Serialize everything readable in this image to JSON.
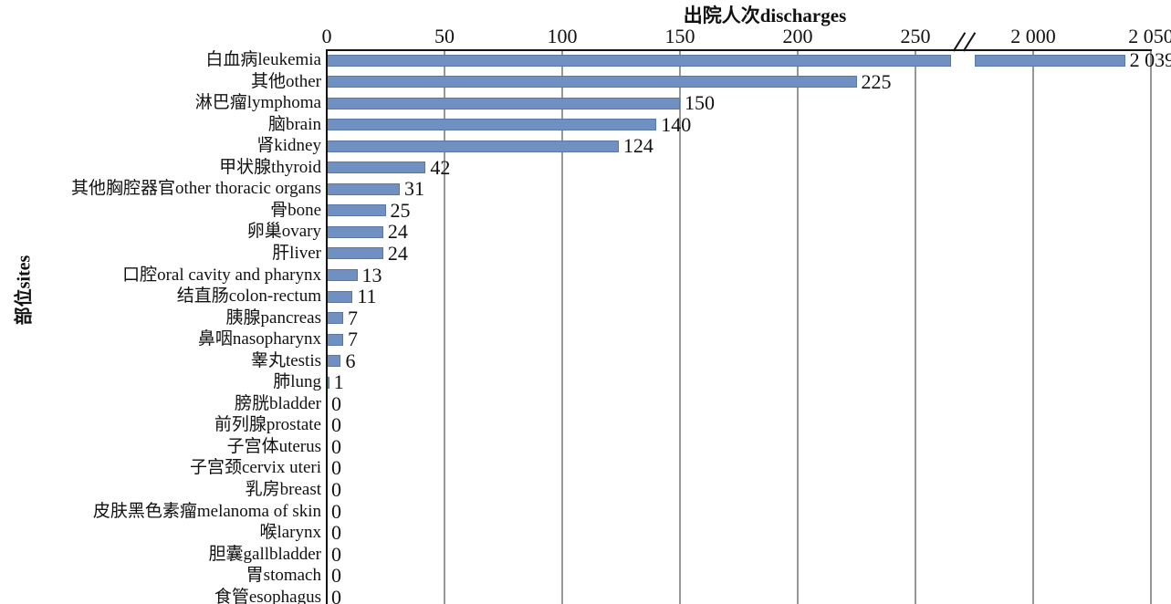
{
  "chart_data": {
    "type": "bar",
    "orientation": "horizontal",
    "title": "出院人次discharges",
    "xlabel": "出院人次discharges",
    "ylabel": "部位sites",
    "axis": {
      "ticks": [
        {
          "value": 0,
          "label": "0"
        },
        {
          "value": 50,
          "label": "50"
        },
        {
          "value": 100,
          "label": "100"
        },
        {
          "value": 150,
          "label": "150"
        },
        {
          "value": 200,
          "label": "200"
        },
        {
          "value": 250,
          "label": "250"
        },
        {
          "value": 2000,
          "label": "2 000"
        },
        {
          "value": 2050,
          "label": "2 050"
        }
      ],
      "break": {
        "between": [
          250,
          2000
        ],
        "symbol": "//"
      },
      "gridlines": true,
      "xlim_left_segment": [
        0,
        265
      ],
      "xlim_right_segment": [
        1950,
        2050
      ]
    },
    "colors": {
      "bar_fill": "#7090c1",
      "bar_border": "#5878a8",
      "gridline": "#979797",
      "axis": "#141414",
      "text": "#111111"
    },
    "rows": [
      {
        "label": "白血病leukemia",
        "value": 2039,
        "display": "2 039"
      },
      {
        "label": "其他other",
        "value": 225,
        "display": "225"
      },
      {
        "label": "淋巴瘤lymphoma",
        "value": 150,
        "display": "150"
      },
      {
        "label": "脑brain",
        "value": 140,
        "display": "140"
      },
      {
        "label": "肾kidney",
        "value": 124,
        "display": "124"
      },
      {
        "label": "甲状腺thyroid",
        "value": 42,
        "display": "42"
      },
      {
        "label": "其他胸腔器官other thoracic organs",
        "value": 31,
        "display": "31"
      },
      {
        "label": "骨bone",
        "value": 25,
        "display": "25"
      },
      {
        "label": "卵巢ovary",
        "value": 24,
        "display": "24"
      },
      {
        "label": "肝liver",
        "value": 24,
        "display": "24"
      },
      {
        "label": "口腔oral cavity and pharynx",
        "value": 13,
        "display": "13"
      },
      {
        "label": "结直肠colon-rectum",
        "value": 11,
        "display": "11"
      },
      {
        "label": "胰腺pancreas",
        "value": 7,
        "display": "7"
      },
      {
        "label": "鼻咽nasopharynx",
        "value": 7,
        "display": "7"
      },
      {
        "label": "睾丸testis",
        "value": 6,
        "display": "6"
      },
      {
        "label": "肺lung",
        "value": 1,
        "display": "1"
      },
      {
        "label": "膀胱bladder",
        "value": 0,
        "display": "0"
      },
      {
        "label": "前列腺prostate",
        "value": 0,
        "display": "0"
      },
      {
        "label": "子宫体uterus",
        "value": 0,
        "display": "0"
      },
      {
        "label": "子宫颈cervix uteri",
        "value": 0,
        "display": "0"
      },
      {
        "label": "乳房breast",
        "value": 0,
        "display": "0"
      },
      {
        "label": "皮肤黑色素瘤melanoma of skin",
        "value": 0,
        "display": "0"
      },
      {
        "label": "喉larynx",
        "value": 0,
        "display": "0"
      },
      {
        "label": "胆囊gallbladder",
        "value": 0,
        "display": "0"
      },
      {
        "label": "胃stomach",
        "value": 0,
        "display": "0"
      },
      {
        "label": "食管esophagus",
        "value": 0,
        "display": "0"
      }
    ]
  }
}
